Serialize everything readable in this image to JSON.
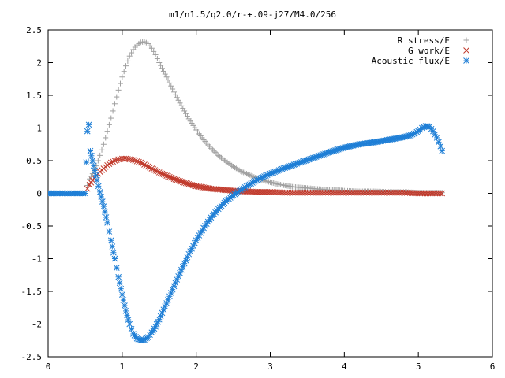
{
  "chart_data": {
    "type": "scatter",
    "title": "m1/n1.5/q2.0/r-+.09-j27/M4.0/256",
    "xlabel": "",
    "ylabel": "",
    "xlim": [
      0,
      6
    ],
    "ylim": [
      -2.5,
      2.5
    ],
    "xticks": [
      "0",
      "1",
      "2",
      "3",
      "4",
      "5",
      "6"
    ],
    "yticks": [
      "-2.5",
      "-2",
      "-1.5",
      "-1",
      "-0.5",
      "0",
      "0.5",
      "1",
      "1.5",
      "2",
      "2.5"
    ],
    "legend_position": "top-right",
    "grid": false,
    "series": [
      {
        "name": "R stress/E",
        "color": "#a0a0a0",
        "marker": "plus",
        "x": [
          0.53,
          0.56,
          0.6,
          0.65,
          0.7,
          0.75,
          0.8,
          0.85,
          0.9,
          0.95,
          1.0,
          1.05,
          1.1,
          1.15,
          1.2,
          1.25,
          1.3,
          1.35,
          1.4,
          1.45,
          1.5,
          1.6,
          1.7,
          1.8,
          1.9,
          2.0,
          2.1,
          2.2,
          2.3,
          2.4,
          2.5,
          2.6,
          2.7,
          2.8,
          2.9,
          3.0,
          3.1,
          3.2,
          3.3,
          3.4,
          3.5,
          3.6,
          3.7,
          3.8,
          3.9,
          4.0,
          4.2,
          4.4,
          4.6,
          4.8,
          5.0,
          5.2,
          5.32
        ],
        "y": [
          0.12,
          0.22,
          0.3,
          0.42,
          0.58,
          0.75,
          0.95,
          1.15,
          1.37,
          1.58,
          1.78,
          1.95,
          2.1,
          2.2,
          2.27,
          2.31,
          2.32,
          2.29,
          2.22,
          2.12,
          2.0,
          1.78,
          1.55,
          1.34,
          1.14,
          0.97,
          0.82,
          0.69,
          0.58,
          0.49,
          0.41,
          0.34,
          0.29,
          0.24,
          0.2,
          0.17,
          0.14,
          0.12,
          0.1,
          0.09,
          0.08,
          0.07,
          0.06,
          0.05,
          0.05,
          0.04,
          0.03,
          0.03,
          0.02,
          0.02,
          0.01,
          0.01,
          0.01
        ]
      },
      {
        "name": "G work/E",
        "color": "#c0392b",
        "marker": "cross",
        "x": [
          0.53,
          0.56,
          0.6,
          0.65,
          0.7,
          0.75,
          0.8,
          0.85,
          0.9,
          0.95,
          1.0,
          1.05,
          1.1,
          1.15,
          1.2,
          1.25,
          1.3,
          1.35,
          1.4,
          1.5,
          1.6,
          1.7,
          1.8,
          1.9,
          2.0,
          2.1,
          2.2,
          2.3,
          2.4,
          2.5,
          2.6,
          2.7,
          2.8,
          2.9,
          3.0,
          3.2,
          3.4,
          3.6,
          3.8,
          4.0,
          4.2,
          4.4,
          4.6,
          4.8,
          5.0,
          5.2,
          5.32
        ],
        "y": [
          0.07,
          0.13,
          0.2,
          0.27,
          0.33,
          0.38,
          0.43,
          0.47,
          0.5,
          0.52,
          0.53,
          0.53,
          0.52,
          0.51,
          0.49,
          0.47,
          0.44,
          0.41,
          0.38,
          0.32,
          0.27,
          0.22,
          0.18,
          0.14,
          0.11,
          0.09,
          0.07,
          0.06,
          0.05,
          0.04,
          0.03,
          0.03,
          0.02,
          0.02,
          0.02,
          0.01,
          0.01,
          0.01,
          0.01,
          0.01,
          0.01,
          0.01,
          0.01,
          0.01,
          0.0,
          0.0,
          0.0
        ]
      },
      {
        "name": "Acoustic flux/E",
        "color": "#1f7fd6",
        "marker": "star",
        "x": [
          0.0,
          0.05,
          0.1,
          0.15,
          0.2,
          0.25,
          0.3,
          0.35,
          0.4,
          0.45,
          0.5,
          0.53,
          0.55,
          0.57,
          0.6,
          0.63,
          0.66,
          0.7,
          0.75,
          0.8,
          0.85,
          0.9,
          0.95,
          1.0,
          1.05,
          1.1,
          1.15,
          1.2,
          1.25,
          1.3,
          1.35,
          1.4,
          1.45,
          1.5,
          1.6,
          1.7,
          1.8,
          1.9,
          2.0,
          2.1,
          2.2,
          2.3,
          2.4,
          2.5,
          2.6,
          2.7,
          2.8,
          2.9,
          3.0,
          3.2,
          3.4,
          3.6,
          3.8,
          4.0,
          4.2,
          4.4,
          4.6,
          4.8,
          4.9,
          5.0,
          5.05,
          5.1,
          5.15,
          5.2,
          5.25,
          5.3,
          5.32
        ],
        "y": [
          0.0,
          0.0,
          0.0,
          0.0,
          0.0,
          0.0,
          0.0,
          0.0,
          0.0,
          0.0,
          0.0,
          0.95,
          1.05,
          0.65,
          0.5,
          0.35,
          0.2,
          0.02,
          -0.2,
          -0.45,
          -0.72,
          -1.0,
          -1.28,
          -1.55,
          -1.8,
          -2.0,
          -2.15,
          -2.22,
          -2.25,
          -2.24,
          -2.2,
          -2.13,
          -2.04,
          -1.93,
          -1.68,
          -1.42,
          -1.17,
          -0.93,
          -0.72,
          -0.53,
          -0.37,
          -0.24,
          -0.12,
          -0.03,
          0.05,
          0.12,
          0.19,
          0.25,
          0.3,
          0.39,
          0.47,
          0.55,
          0.63,
          0.7,
          0.75,
          0.78,
          0.82,
          0.86,
          0.89,
          0.95,
          1.0,
          1.03,
          1.02,
          0.95,
          0.85,
          0.72,
          0.65
        ]
      }
    ]
  }
}
